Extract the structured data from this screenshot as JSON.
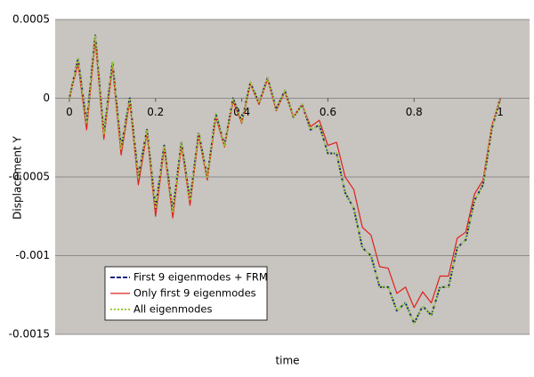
{
  "chart_data": {
    "type": "line",
    "x_label": "time",
    "y_label": "Displacement Y",
    "x": [
      0,
      0.02,
      0.04,
      0.06,
      0.08,
      0.1,
      0.12,
      0.14,
      0.16,
      0.18,
      0.2,
      0.22,
      0.24,
      0.26,
      0.28,
      0.3,
      0.32,
      0.34,
      0.36,
      0.38,
      0.4,
      0.42,
      0.44,
      0.46,
      0.48,
      0.5,
      0.52,
      0.54,
      0.56,
      0.58,
      0.6,
      0.62,
      0.64,
      0.66,
      0.68,
      0.7,
      0.72,
      0.74,
      0.76,
      0.78,
      0.8,
      0.82,
      0.84,
      0.86,
      0.88,
      0.9,
      0.92,
      0.94,
      0.96,
      0.98,
      1
    ],
    "series": [
      {
        "name": "First 9 eigenmodes + FRM",
        "color": "#1a237e",
        "dash": "dashed",
        "values": [
          0,
          0.00025,
          -0.00016,
          0.0004,
          -0.00023,
          0.00023,
          -0.00032,
          0,
          -0.0005,
          -0.0002,
          -0.0007,
          -0.0003,
          -0.00072,
          -0.00028,
          -0.00065,
          -0.00022,
          -0.0005,
          -0.0001,
          -0.0003,
          0,
          -0.00015,
          0.0001,
          -3e-05,
          0.00013,
          -7e-05,
          5e-05,
          -0.00012,
          -4e-05,
          -0.0002,
          -0.00017,
          -0.00035,
          -0.00035,
          -0.0006,
          -0.0007,
          -0.00095,
          -0.001,
          -0.0012,
          -0.0012,
          -0.00135,
          -0.0013,
          -0.00143,
          -0.00132,
          -0.00138,
          -0.0012,
          -0.0012,
          -0.00095,
          -0.0009,
          -0.00065,
          -0.00055,
          -0.0002,
          0
        ]
      },
      {
        "name": "Only first 9 eigenmodes",
        "color": "#e0201b",
        "dash": "solid",
        "values": [
          0,
          0.00022,
          -0.0002,
          0.00037,
          -0.00026,
          0.0002,
          -0.00036,
          -2e-05,
          -0.00055,
          -0.00022,
          -0.00075,
          -0.00032,
          -0.00076,
          -0.0003,
          -0.00068,
          -0.00024,
          -0.00052,
          -0.00012,
          -0.00031,
          -2e-05,
          -0.00016,
          9e-05,
          -4e-05,
          0.00012,
          -8e-05,
          4e-05,
          -0.00012,
          -4e-05,
          -0.00018,
          -0.00014,
          -0.0003,
          -0.00028,
          -0.0005,
          -0.00058,
          -0.00082,
          -0.00087,
          -0.00107,
          -0.00108,
          -0.00124,
          -0.0012,
          -0.00133,
          -0.00123,
          -0.0013,
          -0.00113,
          -0.00113,
          -0.00089,
          -0.00085,
          -0.00061,
          -0.00052,
          -0.00018,
          0
        ]
      },
      {
        "name": "All eigenmodes",
        "color": "#9acd32",
        "dash": "dotted",
        "values": [
          0,
          0.00025,
          -0.00016,
          0.0004,
          -0.00023,
          0.00023,
          -0.00032,
          0,
          -0.0005,
          -0.0002,
          -0.0007,
          -0.0003,
          -0.00072,
          -0.00028,
          -0.00065,
          -0.00022,
          -0.0005,
          -0.0001,
          -0.0003,
          0,
          -0.00015,
          0.0001,
          -3e-05,
          0.00013,
          -7e-05,
          5e-05,
          -0.00012,
          -4e-05,
          -0.0002,
          -0.00017,
          -0.00035,
          -0.00035,
          -0.0006,
          -0.0007,
          -0.00095,
          -0.001,
          -0.0012,
          -0.0012,
          -0.00135,
          -0.0013,
          -0.00143,
          -0.00132,
          -0.00138,
          -0.0012,
          -0.0012,
          -0.00095,
          -0.0009,
          -0.00065,
          -0.00055,
          -0.0002,
          0
        ]
      }
    ],
    "xlim": [
      -0.033,
      1.068
    ],
    "xticks": [
      0,
      0.2,
      0.4,
      0.6,
      0.8,
      1
    ],
    "ylim": [
      -0.0015,
      0.0005
    ],
    "yticks": [
      -0.0015,
      -0.001,
      -0.0005,
      0,
      0.0005
    ],
    "grid": true,
    "legend": "lower left"
  }
}
